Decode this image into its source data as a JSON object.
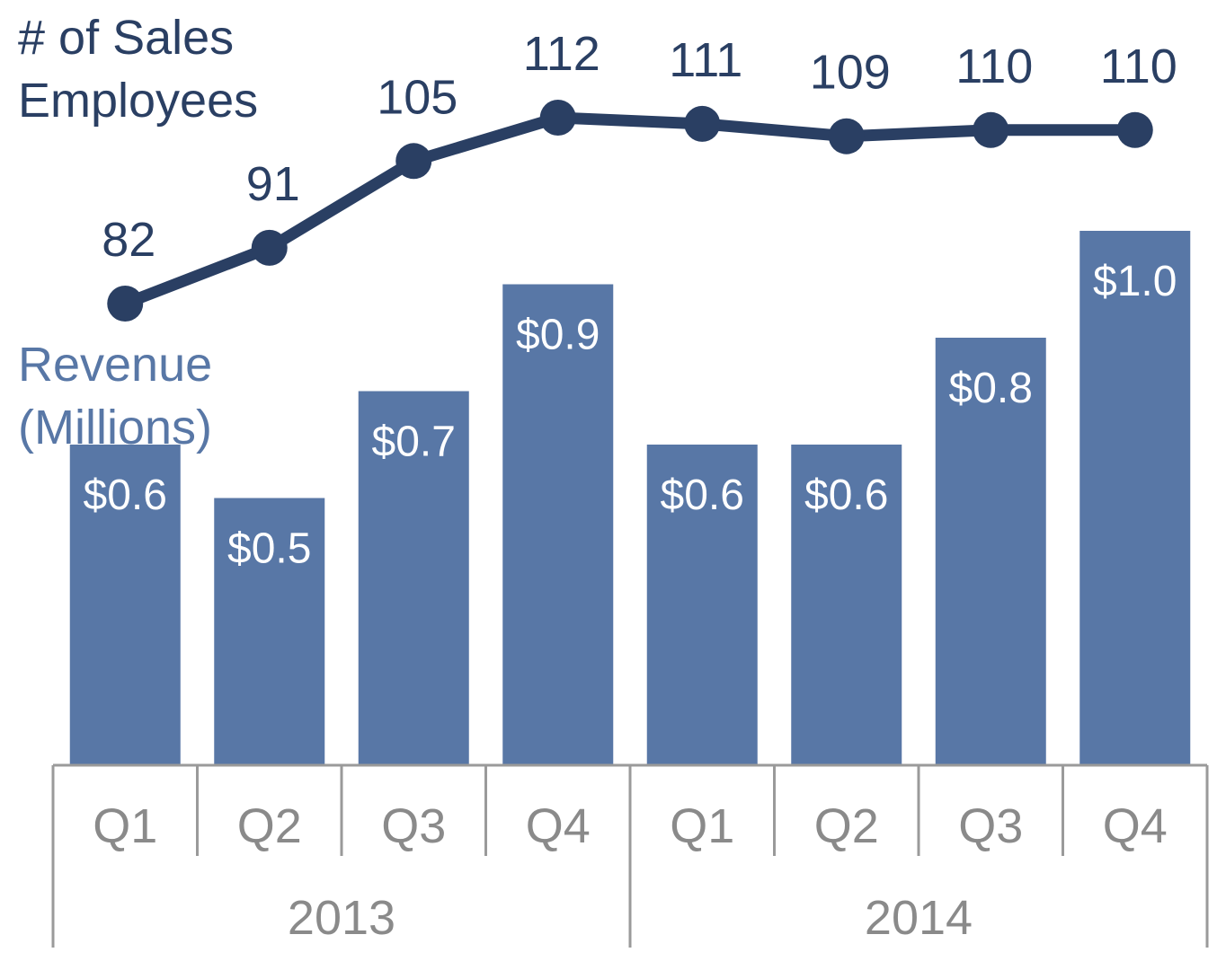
{
  "chart_data": {
    "type": "bar",
    "colors": {
      "bar": "#5877a6",
      "line": "#2a3f63",
      "axis": "#9a9a9a",
      "axis_text": "#8a8a8a"
    },
    "legend": {
      "employees_line1": "# of Sales",
      "employees_line2": "Employees",
      "revenue_line1": "Revenue",
      "revenue_line2": "(Millions)"
    },
    "groups": [
      {
        "label": "2013",
        "categories": [
          "Q1",
          "Q2",
          "Q3",
          "Q4"
        ]
      },
      {
        "label": "2014",
        "categories": [
          "Q1",
          "Q2",
          "Q3",
          "Q4"
        ]
      }
    ],
    "series": [
      {
        "name": "Revenue (Millions)",
        "type": "bar",
        "values": [
          0.6,
          0.5,
          0.7,
          0.9,
          0.6,
          0.6,
          0.8,
          1.0
        ],
        "labels": [
          "$0.6",
          "$0.5",
          "$0.7",
          "$0.9",
          "$0.6",
          "$0.6",
          "$0.8",
          "$1.0"
        ]
      },
      {
        "name": "# of Sales Employees",
        "type": "line",
        "values": [
          82,
          91,
          105,
          112,
          111,
          109,
          110,
          110
        ],
        "labels": [
          "82",
          "91",
          "105",
          "112",
          "111",
          "109",
          "110",
          "110"
        ]
      }
    ]
  }
}
